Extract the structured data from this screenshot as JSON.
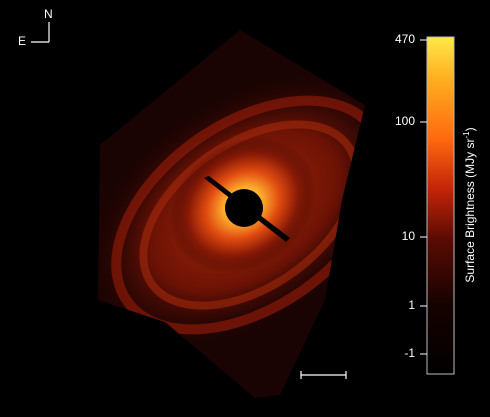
{
  "compass": {
    "north": "N",
    "east": "E"
  },
  "colorbar": {
    "title": "Surface Brightness (MJy sr",
    "title_exponent": "-1",
    "title_close": ")",
    "ticks": [
      {
        "label": "470"
      },
      {
        "label": "100"
      },
      {
        "label": "10"
      },
      {
        "label": "1"
      },
      {
        "label": "-1"
      }
    ],
    "colors": [
      "#ffe94a",
      "#ffb020",
      "#ff6a10",
      "#d62808",
      "#7a1004",
      "#2a0502",
      "#050000"
    ]
  }
}
